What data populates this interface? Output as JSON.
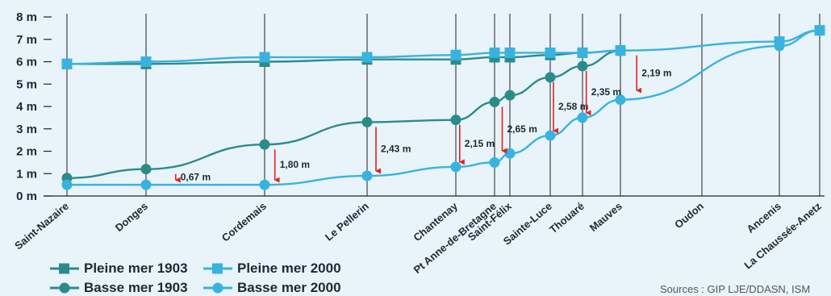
{
  "chart_data": {
    "type": "line",
    "categories": [
      "Saint-Nazaire",
      "Donges",
      "Cordemais",
      "Le Pellerin",
      "Chantenay",
      "Pt Anne-de-Bretagne",
      "Saint-Félix",
      "Sainte-Luce",
      "Thouaré",
      "Mauves",
      "Oudon",
      "Ancenis",
      "La Chaussée-Anetz"
    ],
    "ylabel": "",
    "xlabel": "",
    "ylim": [
      0,
      8
    ],
    "yticks": [
      "0 m",
      "1 m",
      "2 m",
      "3 m",
      "4 m",
      "5 m",
      "6 m",
      "7 m",
      "8 m"
    ],
    "grid": "vertical",
    "legend_position": "bottom-left",
    "series": [
      {
        "name": "Pleine mer 1903",
        "color": "#2a8c8a",
        "marker": "square",
        "points": [
          [
            0,
            5.9
          ],
          [
            1,
            5.9
          ],
          [
            2,
            6.0
          ],
          [
            3,
            6.1
          ],
          [
            4,
            6.1
          ],
          [
            5,
            6.2
          ],
          [
            6,
            6.2
          ],
          [
            7,
            6.3
          ],
          [
            8,
            6.4
          ],
          [
            9,
            6.5
          ]
        ]
      },
      {
        "name": "Basse mer 1903",
        "color": "#2a8c8a",
        "marker": "circle",
        "points": [
          [
            0,
            0.8
          ],
          [
            1,
            1.2
          ],
          [
            2,
            2.3
          ],
          [
            3,
            3.3
          ],
          [
            4,
            3.4
          ],
          [
            5,
            4.2
          ],
          [
            6,
            4.5
          ],
          [
            7,
            5.3
          ],
          [
            8,
            5.8
          ],
          [
            9,
            6.5
          ]
        ]
      },
      {
        "name": "Pleine mer 2000",
        "color": "#38b3e0",
        "marker": "square",
        "points": [
          [
            0,
            5.9
          ],
          [
            1,
            6.0
          ],
          [
            2,
            6.2
          ],
          [
            3,
            6.2
          ],
          [
            4,
            6.3
          ],
          [
            5,
            6.4
          ],
          [
            6,
            6.4
          ],
          [
            7,
            6.4
          ],
          [
            8,
            6.4
          ],
          [
            9,
            6.5
          ],
          [
            11,
            6.9
          ],
          [
            12,
            7.4
          ]
        ]
      },
      {
        "name": "Basse mer 2000",
        "color": "#38b3e0",
        "marker": "circle",
        "points": [
          [
            0,
            0.5
          ],
          [
            1,
            0.5
          ],
          [
            2,
            0.5
          ],
          [
            3,
            0.9
          ],
          [
            4,
            1.3
          ],
          [
            5,
            1.5
          ],
          [
            6,
            1.9
          ],
          [
            7,
            2.7
          ],
          [
            8,
            3.5
          ],
          [
            9,
            4.3
          ],
          [
            11,
            6.7
          ],
          [
            12,
            7.4
          ]
        ]
      }
    ],
    "annotations": [
      {
        "text": "0,67 m",
        "category": 1.25,
        "from": 1.2,
        "to": 0.5
      },
      {
        "text": "1,80 m",
        "category": 2.1,
        "from": 2.3,
        "to": 0.5
      },
      {
        "text": "2,43 m",
        "category": 3.1,
        "from": 3.3,
        "to": 0.9
      },
      {
        "text": "2,15 m",
        "category": 4.1,
        "from": 3.4,
        "to": 1.3
      },
      {
        "text": "2,65 m",
        "category": 5.5,
        "from": 4.2,
        "to": 1.8
      },
      {
        "text": "2,58 m",
        "category": 7.1,
        "from": 5.3,
        "to": 2.7
      },
      {
        "text": "2,35 m",
        "category": 8.1,
        "from": 5.8,
        "to": 3.5
      },
      {
        "text": "2,19 m",
        "category": 9.2,
        "from": 6.5,
        "to": 4.5
      }
    ]
  },
  "legend": [
    {
      "label": "Pleine mer 1903",
      "color": "#2a8c8a",
      "marker": "square"
    },
    {
      "label": "Pleine mer 2000",
      "color": "#38b3e0",
      "marker": "square"
    },
    {
      "label": "Basse mer 1903",
      "color": "#2a8c8a",
      "marker": "circle"
    },
    {
      "label": "Basse mer 2000",
      "color": "#38b3e0",
      "marker": "circle"
    }
  ],
  "source": "Sources : GIP LJE/DDASN, ISM"
}
